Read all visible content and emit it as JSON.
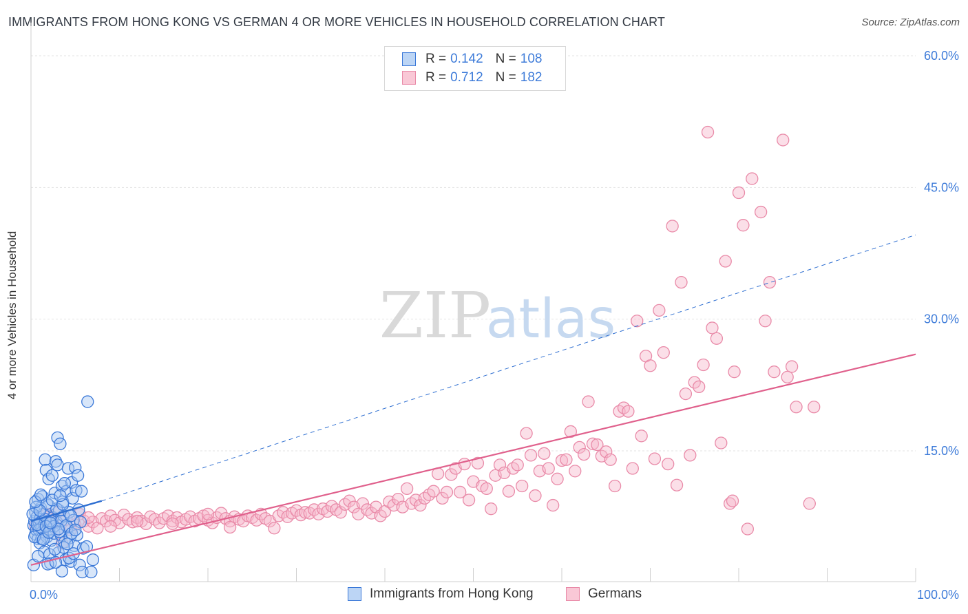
{
  "header": {
    "title": "IMMIGRANTS FROM HONG KONG VS GERMAN 4 OR MORE VEHICLES IN HOUSEHOLD CORRELATION CHART",
    "source": "Source: ZipAtlas.com"
  },
  "watermark": {
    "zip": "ZIP",
    "atlas": "atlas"
  },
  "legend": {
    "rows": [
      {
        "r_label": "R =",
        "r_value": "0.142",
        "n_label": "N =",
        "n_value": "108"
      },
      {
        "r_label": "R =",
        "r_value": "0.712",
        "n_label": "N =",
        "n_value": "182"
      }
    ]
  },
  "colors": {
    "blue_fill": "#a9c8f2",
    "blue_stroke": "#3a78d8",
    "blue_line": "#2f6fd1",
    "pink_fill": "#f6b8cb",
    "pink_stroke": "#e98aa8",
    "pink_line": "#e0608c",
    "value_text": "#3d7bd9",
    "grid": "#e3e3e3"
  },
  "chart_data": {
    "type": "scatter",
    "title": "IMMIGRANTS FROM HONG KONG VS GERMAN 4 OR MORE VEHICLES IN HOUSEHOLD CORRELATION CHART",
    "xlabel": "",
    "ylabel": "4 or more Vehicles in Household",
    "xlim": [
      0,
      100
    ],
    "ylim": [
      0,
      63
    ],
    "x_tick_labels": [
      {
        "value": 0,
        "label": "0.0%"
      },
      {
        "value": 100,
        "label": "100.0%"
      }
    ],
    "y_tick_labels": [
      {
        "value": 15,
        "label": "15.0%"
      },
      {
        "value": 30,
        "label": "30.0%"
      },
      {
        "value": 45,
        "label": "45.0%"
      },
      {
        "value": 60,
        "label": "60.0%"
      }
    ],
    "grid": true,
    "legend_position": "top-center",
    "series": [
      {
        "name": "Immigrants from Hong Kong",
        "R": 0.142,
        "N": 108,
        "trend_solid": [
          [
            0,
            7.0
          ],
          [
            8,
            9.3
          ]
        ],
        "trend_dashed": [
          [
            8,
            9.3
          ],
          [
            100,
            39.6
          ]
        ],
        "points": [
          [
            0.3,
            6.5
          ],
          [
            0.4,
            7.0
          ],
          [
            0.5,
            5.5
          ],
          [
            0.5,
            8.0
          ],
          [
            0.6,
            6.0
          ],
          [
            0.7,
            7.5
          ],
          [
            0.8,
            9.5
          ],
          [
            0.8,
            5.0
          ],
          [
            0.9,
            6.8
          ],
          [
            1.0,
            7.2
          ],
          [
            1.0,
            4.5
          ],
          [
            1.1,
            8.5
          ],
          [
            1.2,
            6.2
          ],
          [
            1.3,
            5.8
          ],
          [
            1.3,
            9.8
          ],
          [
            1.4,
            7.8
          ],
          [
            1.5,
            3.5
          ],
          [
            1.5,
            6.6
          ],
          [
            1.6,
            14.0
          ],
          [
            1.7,
            12.8
          ],
          [
            1.8,
            5.2
          ],
          [
            1.9,
            7.0
          ],
          [
            2.0,
            11.8
          ],
          [
            2.0,
            8.8
          ],
          [
            2.1,
            6.0
          ],
          [
            2.2,
            2.2
          ],
          [
            2.3,
            4.8
          ],
          [
            2.4,
            12.2
          ],
          [
            2.5,
            7.4
          ],
          [
            2.6,
            5.6
          ],
          [
            2.7,
            10.2
          ],
          [
            2.8,
            13.8
          ],
          [
            2.9,
            6.9
          ],
          [
            3.0,
            13.4
          ],
          [
            3.0,
            16.5
          ],
          [
            3.1,
            3.4
          ],
          [
            3.2,
            8.2
          ],
          [
            3.3,
            15.8
          ],
          [
            3.4,
            5.4
          ],
          [
            3.5,
            11.0
          ],
          [
            3.5,
            1.3
          ],
          [
            3.6,
            9.2
          ],
          [
            3.7,
            7.6
          ],
          [
            3.8,
            4.6
          ],
          [
            3.9,
            2.6
          ],
          [
            4.0,
            10.4
          ],
          [
            4.1,
            6.3
          ],
          [
            4.2,
            13.0
          ],
          [
            4.3,
            8.0
          ],
          [
            4.4,
            5.1
          ],
          [
            4.5,
            2.4
          ],
          [
            4.6,
            11.4
          ],
          [
            4.7,
            9.6
          ],
          [
            4.8,
            7.1
          ],
          [
            4.9,
            4.2
          ],
          [
            5.0,
            13.1
          ],
          [
            5.1,
            10.5
          ],
          [
            5.2,
            5.4
          ],
          [
            5.3,
            12.2
          ],
          [
            5.4,
            8.3
          ],
          [
            5.5,
            2.0
          ],
          [
            5.6,
            6.9
          ],
          [
            5.7,
            10.4
          ],
          [
            5.8,
            1.2
          ],
          [
            5.9,
            3.9
          ],
          [
            6.3,
            4.1
          ],
          [
            6.4,
            20.6
          ],
          [
            6.8,
            1.2
          ],
          [
            7.0,
            2.6
          ],
          [
            0.3,
            2.0
          ],
          [
            0.6,
            8.6
          ],
          [
            0.9,
            6.0
          ],
          [
            1.2,
            5.0
          ],
          [
            1.6,
            7.2
          ],
          [
            1.8,
            9.0
          ],
          [
            2.1,
            3.2
          ],
          [
            2.3,
            7.0
          ],
          [
            2.6,
            6.4
          ],
          [
            2.9,
            8.4
          ],
          [
            3.2,
            5.8
          ],
          [
            3.4,
            7.0
          ],
          [
            3.7,
            4.0
          ],
          [
            4.0,
            6.5
          ],
          [
            4.3,
            2.8
          ],
          [
            4.6,
            5.6
          ],
          [
            0.2,
            7.8
          ],
          [
            0.4,
            5.2
          ],
          [
            0.7,
            6.6
          ],
          [
            1.0,
            8.2
          ],
          [
            1.4,
            4.9
          ],
          [
            1.7,
            6.4
          ],
          [
            2.0,
            5.7
          ],
          [
            2.4,
            9.4
          ],
          [
            2.7,
            3.8
          ],
          [
            3.1,
            6.1
          ],
          [
            3.6,
            8.9
          ],
          [
            4.1,
            4.4
          ],
          [
            4.5,
            7.6
          ],
          [
            5.0,
            6.0
          ],
          [
            0.5,
            9.2
          ],
          [
            0.8,
            3.0
          ],
          [
            1.1,
            10.0
          ],
          [
            1.9,
            2.1
          ],
          [
            2.2,
            6.8
          ],
          [
            2.8,
            2.3
          ],
          [
            3.3,
            9.9
          ],
          [
            3.8,
            11.3
          ],
          [
            4.8,
            3.3
          ]
        ]
      },
      {
        "name": "Germans",
        "R": 0.712,
        "N": 182,
        "trend_solid": [
          [
            0,
            2.0
          ],
          [
            100,
            26.0
          ]
        ],
        "points": [
          [
            0.5,
            6.5
          ],
          [
            1.0,
            7.0
          ],
          [
            1.5,
            6.2
          ],
          [
            2.0,
            7.5
          ],
          [
            2.5,
            6.8
          ],
          [
            3.0,
            8.0
          ],
          [
            3.5,
            4.5
          ],
          [
            4.0,
            7.2
          ],
          [
            4.5,
            6.0
          ],
          [
            5.0,
            6.6
          ],
          [
            5.5,
            7.8
          ],
          [
            6.0,
            7.0
          ],
          [
            6.5,
            6.4
          ],
          [
            7.0,
            6.9
          ],
          [
            7.5,
            6.2
          ],
          [
            8.0,
            7.3
          ],
          [
            8.5,
            7.0
          ],
          [
            9.0,
            7.6
          ],
          [
            9.5,
            7.1
          ],
          [
            10.0,
            6.8
          ],
          [
            10.5,
            7.7
          ],
          [
            11.0,
            7.2
          ],
          [
            11.5,
            6.9
          ],
          [
            12.0,
            7.4
          ],
          [
            12.5,
            7.0
          ],
          [
            13.0,
            6.7
          ],
          [
            13.5,
            7.5
          ],
          [
            14.0,
            7.2
          ],
          [
            14.5,
            6.8
          ],
          [
            15.0,
            7.3
          ],
          [
            15.5,
            7.6
          ],
          [
            16.0,
            7.0
          ],
          [
            16.5,
            7.4
          ],
          [
            17.0,
            6.9
          ],
          [
            17.5,
            7.2
          ],
          [
            18.0,
            7.5
          ],
          [
            18.5,
            7.0
          ],
          [
            19.0,
            7.3
          ],
          [
            19.5,
            7.6
          ],
          [
            20.0,
            7.1
          ],
          [
            20.5,
            6.8
          ],
          [
            21.0,
            7.4
          ],
          [
            21.5,
            7.9
          ],
          [
            22.0,
            7.3
          ],
          [
            22.5,
            7.0
          ],
          [
            23.0,
            7.5
          ],
          [
            23.5,
            7.2
          ],
          [
            24.0,
            7.0
          ],
          [
            24.5,
            7.6
          ],
          [
            25.0,
            7.4
          ],
          [
            25.5,
            7.1
          ],
          [
            26.0,
            7.8
          ],
          [
            26.5,
            7.3
          ],
          [
            27.0,
            7.0
          ],
          [
            27.5,
            6.2
          ],
          [
            28.0,
            7.6
          ],
          [
            28.5,
            8.0
          ],
          [
            29.0,
            7.5
          ],
          [
            29.5,
            7.9
          ],
          [
            30.0,
            8.2
          ],
          [
            30.5,
            7.7
          ],
          [
            31.0,
            8.0
          ],
          [
            31.5,
            7.9
          ],
          [
            32.0,
            8.3
          ],
          [
            32.5,
            7.8
          ],
          [
            33.0,
            8.4
          ],
          [
            33.5,
            8.1
          ],
          [
            34.0,
            8.7
          ],
          [
            34.5,
            8.3
          ],
          [
            35.0,
            8.0
          ],
          [
            35.5,
            8.9
          ],
          [
            36.0,
            9.3
          ],
          [
            36.5,
            8.6
          ],
          [
            37.0,
            7.8
          ],
          [
            37.5,
            9.0
          ],
          [
            38.0,
            8.3
          ],
          [
            38.5,
            7.9
          ],
          [
            39.0,
            8.6
          ],
          [
            39.5,
            7.6
          ],
          [
            40.0,
            8.1
          ],
          [
            40.5,
            9.2
          ],
          [
            41.0,
            8.8
          ],
          [
            41.5,
            9.5
          ],
          [
            42.0,
            8.6
          ],
          [
            42.5,
            10.7
          ],
          [
            43.0,
            9.0
          ],
          [
            43.5,
            9.4
          ],
          [
            44.0,
            8.8
          ],
          [
            44.5,
            9.6
          ],
          [
            45.0,
            10.0
          ],
          [
            45.5,
            10.4
          ],
          [
            46.0,
            12.4
          ],
          [
            46.5,
            9.6
          ],
          [
            47.0,
            10.3
          ],
          [
            47.5,
            12.3
          ],
          [
            48.0,
            13.0
          ],
          [
            48.5,
            10.3
          ],
          [
            49.0,
            13.5
          ],
          [
            49.5,
            9.4
          ],
          [
            50.0,
            11.5
          ],
          [
            50.5,
            13.6
          ],
          [
            51.0,
            11.0
          ],
          [
            51.5,
            10.7
          ],
          [
            52.0,
            8.4
          ],
          [
            52.5,
            12.2
          ],
          [
            53.0,
            13.4
          ],
          [
            53.5,
            12.5
          ],
          [
            54.0,
            10.4
          ],
          [
            54.5,
            13.0
          ],
          [
            55.0,
            13.4
          ],
          [
            55.5,
            11.0
          ],
          [
            56.0,
            17.0
          ],
          [
            56.5,
            14.5
          ],
          [
            57.0,
            9.9
          ],
          [
            57.5,
            12.7
          ],
          [
            58.0,
            14.7
          ],
          [
            58.5,
            13.0
          ],
          [
            59.0,
            8.8
          ],
          [
            59.5,
            11.8
          ],
          [
            60.0,
            13.9
          ],
          [
            60.5,
            14.0
          ],
          [
            61.0,
            17.2
          ],
          [
            61.5,
            12.7
          ],
          [
            62.0,
            15.4
          ],
          [
            62.5,
            14.6
          ],
          [
            63.0,
            20.6
          ],
          [
            63.5,
            15.8
          ],
          [
            64.0,
            15.7
          ],
          [
            64.5,
            14.4
          ],
          [
            65.0,
            14.9
          ],
          [
            65.5,
            14.0
          ],
          [
            66.0,
            11.0
          ],
          [
            66.5,
            19.5
          ],
          [
            67.0,
            19.9
          ],
          [
            67.5,
            19.5
          ],
          [
            68.0,
            13.0
          ],
          [
            68.5,
            29.8
          ],
          [
            69.0,
            16.7
          ],
          [
            69.5,
            25.8
          ],
          [
            70.0,
            24.7
          ],
          [
            70.5,
            14.1
          ],
          [
            71.0,
            31.0
          ],
          [
            71.5,
            26.2
          ],
          [
            72.0,
            13.5
          ],
          [
            72.5,
            40.6
          ],
          [
            73.0,
            11.1
          ],
          [
            73.5,
            34.2
          ],
          [
            74.0,
            21.5
          ],
          [
            74.5,
            14.5
          ],
          [
            75.0,
            22.8
          ],
          [
            75.5,
            22.3
          ],
          [
            76.0,
            24.8
          ],
          [
            76.5,
            51.3
          ],
          [
            77.0,
            29.0
          ],
          [
            77.5,
            27.8
          ],
          [
            78.0,
            15.9
          ],
          [
            78.5,
            36.6
          ],
          [
            79.0,
            9.0
          ],
          [
            79.3,
            9.3
          ],
          [
            79.5,
            24.0
          ],
          [
            80.0,
            44.4
          ],
          [
            80.5,
            40.7
          ],
          [
            81.0,
            6.1
          ],
          [
            81.5,
            46.0
          ],
          [
            82.5,
            42.2
          ],
          [
            83.0,
            29.8
          ],
          [
            83.5,
            34.2
          ],
          [
            84.0,
            24.0
          ],
          [
            85.0,
            50.4
          ],
          [
            86.0,
            24.6
          ],
          [
            86.5,
            20.0
          ],
          [
            88.0,
            9.0
          ],
          [
            88.5,
            20.0
          ],
          [
            85.5,
            23.4
          ],
          [
            22.5,
            6.3
          ],
          [
            20.0,
            7.8
          ],
          [
            16.0,
            6.7
          ],
          [
            12.0,
            7.0
          ],
          [
            9.0,
            6.4
          ],
          [
            6.5,
            7.4
          ],
          [
            3.0,
            6.0
          ],
          [
            1.8,
            7.8
          ]
        ]
      }
    ]
  },
  "bottom_legend": {
    "items": [
      {
        "label": "Immigrants from Hong Kong"
      },
      {
        "label": "Germans"
      }
    ]
  }
}
